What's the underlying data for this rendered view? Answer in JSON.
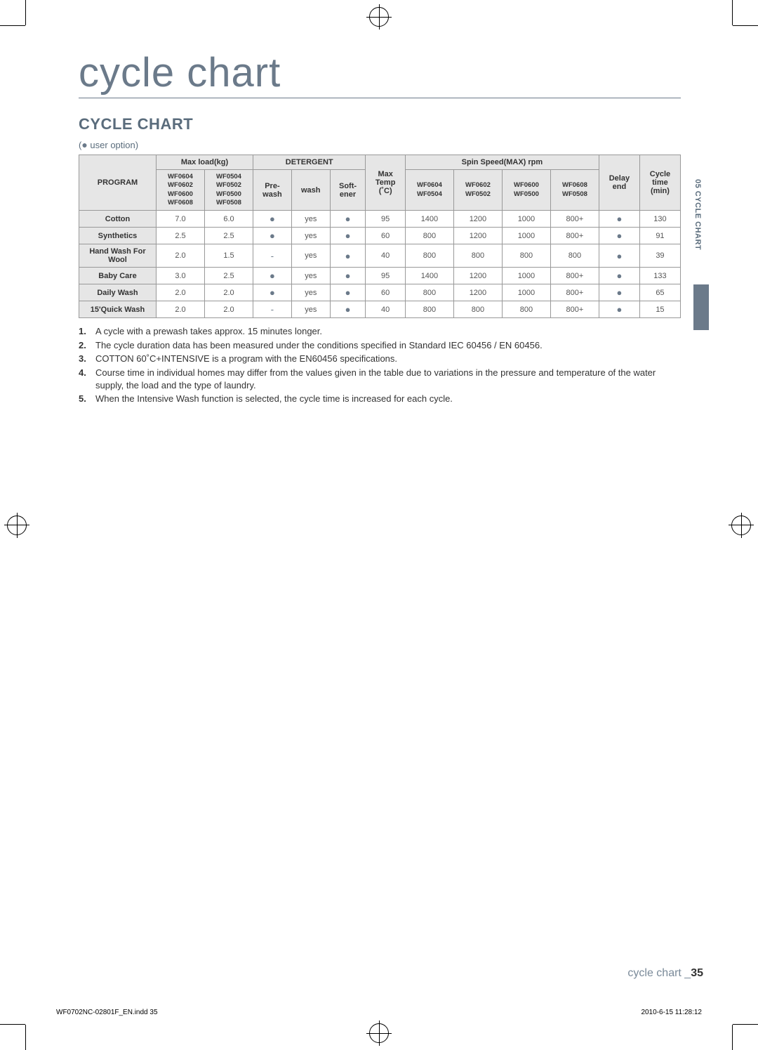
{
  "page": {
    "title_main": "cycle chart",
    "title_section": "CYCLE CHART",
    "legend_text": " user option)",
    "side_label": "05 CYCLE CHART",
    "footer_label": "cycle chart _",
    "footer_page": "35",
    "meta_left": "WF0702NC-02801F_EN.indd   35",
    "meta_right": "2010-6-15   11:28:12"
  },
  "table": {
    "headers": {
      "program": "PROGRAM",
      "max_load": "Max load(kg)",
      "detergent": "DETERGENT",
      "spin": "Spin Speed(MAX) rpm",
      "max_temp": "Max\nTemp\n(˚C)",
      "delay_end": "Delay\nend",
      "cycle_time": "Cycle\ntime\n(min)",
      "load_col1": "WF0604\nWF0602\nWF0600\nWF0608",
      "load_col2": "WF0504\nWF0502\nWF0500\nWF0508",
      "det_pre": "Pre-\nwash",
      "det_wash": "wash",
      "det_soft": "Soft-\nener",
      "spin1": "WF0604\nWF0504",
      "spin2": "WF0602\nWF0502",
      "spin3": "WF0600\nWF0500",
      "spin4": "WF0608\nWF0508"
    },
    "rows": [
      {
        "program": "Cotton",
        "l1": "7.0",
        "l2": "6.0",
        "pre": "●",
        "wash": "yes",
        "soft": "●",
        "temp": "95",
        "s1": "1400",
        "s2": "1200",
        "s3": "1000",
        "s4": "800+",
        "delay": "●",
        "time": "130"
      },
      {
        "program": "Synthetics",
        "l1": "2.5",
        "l2": "2.5",
        "pre": "●",
        "wash": "yes",
        "soft": "●",
        "temp": "60",
        "s1": "800",
        "s2": "1200",
        "s3": "1000",
        "s4": "800+",
        "delay": "●",
        "time": "91"
      },
      {
        "program": "Hand Wash For Wool",
        "l1": "2.0",
        "l2": "1.5",
        "pre": "-",
        "wash": "yes",
        "soft": "●",
        "temp": "40",
        "s1": "800",
        "s2": "800",
        "s3": "800",
        "s4": "800",
        "delay": "●",
        "time": "39"
      },
      {
        "program": "Baby Care",
        "l1": "3.0",
        "l2": "2.5",
        "pre": "●",
        "wash": "yes",
        "soft": "●",
        "temp": "95",
        "s1": "1400",
        "s2": "1200",
        "s3": "1000",
        "s4": "800+",
        "delay": "●",
        "time": "133"
      },
      {
        "program": "Daily Wash",
        "l1": "2.0",
        "l2": "2.0",
        "pre": "●",
        "wash": "yes",
        "soft": "●",
        "temp": "60",
        "s1": "800",
        "s2": "1200",
        "s3": "1000",
        "s4": "800+",
        "delay": "●",
        "time": "65"
      },
      {
        "program": "15'Quick Wash",
        "l1": "2.0",
        "l2": "2.0",
        "pre": "-",
        "wash": "yes",
        "soft": "●",
        "temp": "40",
        "s1": "800",
        "s2": "800",
        "s3": "800",
        "s4": "800+",
        "delay": "●",
        "time": "15"
      }
    ]
  },
  "notes": [
    "A cycle with a prewash takes approx. 15 minutes longer.",
    "The cycle duration data has been measured under the conditions specified in Standard IEC 60456 / EN 60456.",
    "COTTON 60˚C+INTENSIVE is a program with the EN60456 specifications.",
    "Course time in individual homes may differ from the values given in the table due to variations in the pressure and temperature of the water supply, the load and the type of laundry.",
    "When the Intensive Wash function is selected, the cycle time is increased for each cycle."
  ]
}
